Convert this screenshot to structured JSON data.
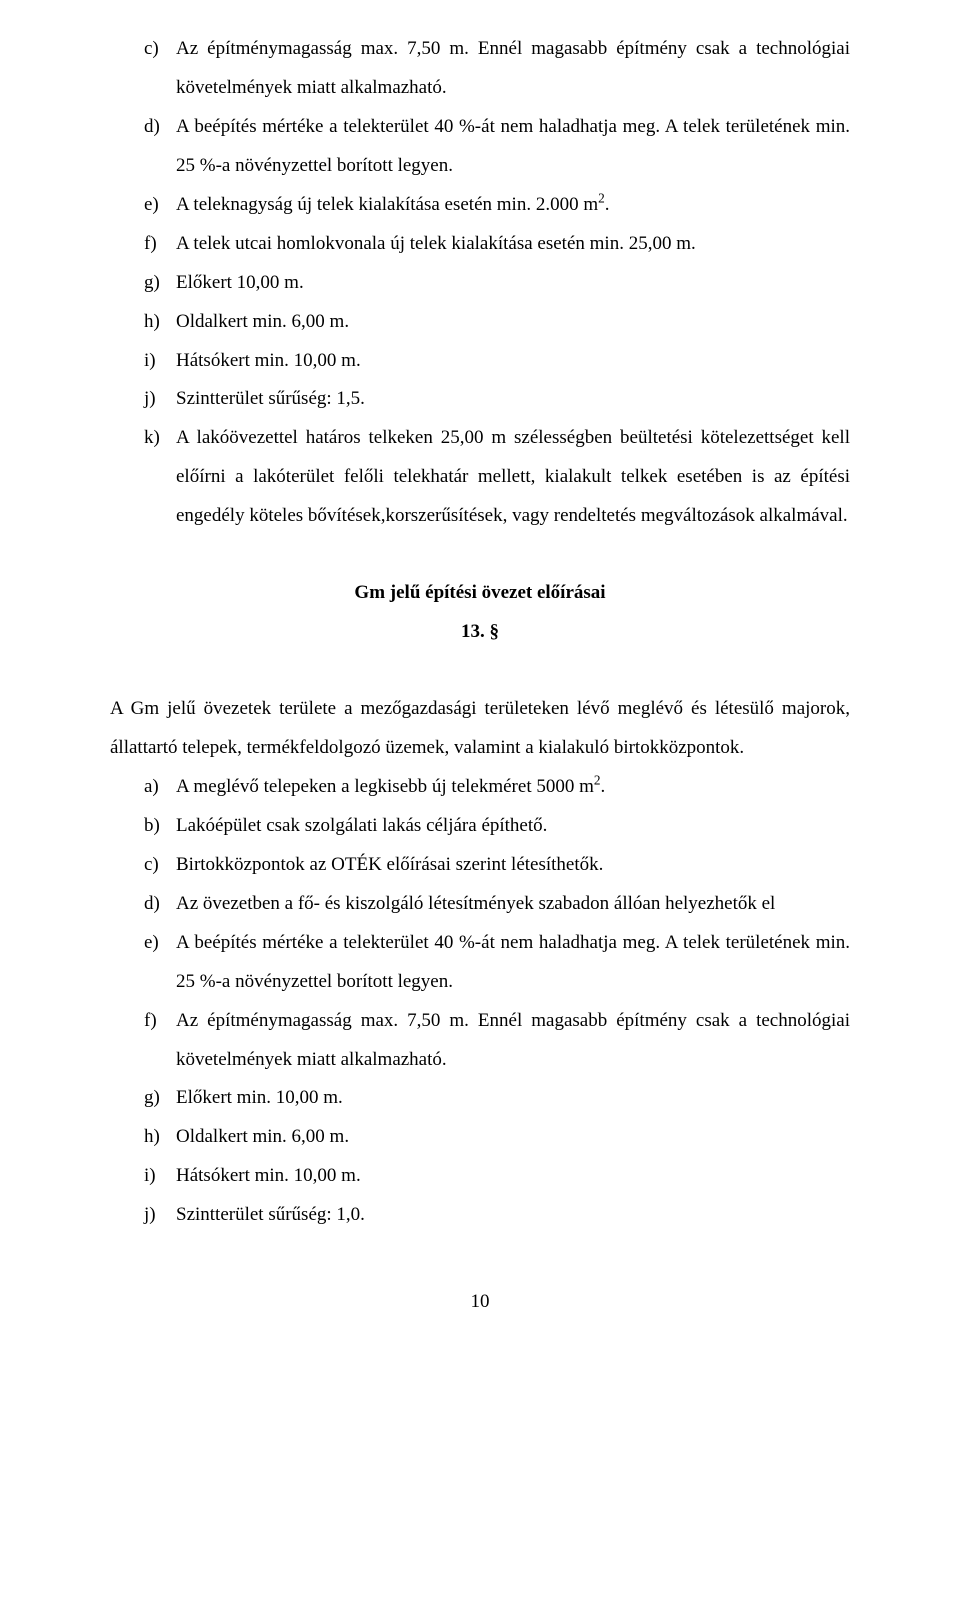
{
  "list1": {
    "c": {
      "marker": "c)",
      "text": "Az építménymagasság max. 7,50 m. Ennél magasabb építmény csak a technológiai követelmények miatt alkalmazható."
    },
    "d": {
      "marker": "d)",
      "text": "A beépítés mértéke a telekterület 40 %-át nem haladhatja meg. A telek területének min. 25 %-a növényzettel borított legyen."
    },
    "e": {
      "marker": "e)",
      "text_pre": "A teleknagyság új telek kialakítása esetén min. 2.000 m",
      "sup": "2",
      "text_post": "."
    },
    "f": {
      "marker": "f)",
      "text": "A telek utcai homlokvonala új telek kialakítása esetén min. 25,00 m."
    },
    "g": {
      "marker": "g)",
      "text": "Előkert 10,00 m."
    },
    "h": {
      "marker": "h)",
      "text": "Oldalkert min. 6,00 m."
    },
    "i": {
      "marker": "i)",
      "text": "Hátsókert min. 10,00 m."
    },
    "j": {
      "marker": "j)",
      "text": "Szintterület sűrűség: 1,5."
    },
    "k": {
      "marker": "k)",
      "text": "A lakóövezettel határos telkeken 25,00 m szélességben beültetési kötelezettséget kell előírni a lakóterület felőli telekhatár mellett, kialakult telkek esetében is az építési engedély köteles bővítések,korszerűsítések, vagy rendeltetés megváltozások alkalmával."
    }
  },
  "heading": {
    "title": "Gm jelű építési övezet előírásai",
    "section": "13. §"
  },
  "para2": "A Gm jelű övezetek területe a mezőgazdasági területeken lévő meglévő és létesülő majorok, állattartó telepek, termékfeldolgozó üzemek, valamint a kialakuló birtokközpontok.",
  "list2": {
    "a": {
      "marker": "a)",
      "text_pre": "A meglévő telepeken a legkisebb új telekméret 5000 m",
      "sup": "2",
      "text_post": "."
    },
    "b": {
      "marker": "b)",
      "text": "Lakóépület csak szolgálati lakás céljára építhető."
    },
    "c": {
      "marker": "c)",
      "text": "Birtokközpontok az OTÉK előírásai szerint létesíthetők."
    },
    "d": {
      "marker": "d)",
      "text": "Az övezetben a fő- és kiszolgáló létesítmények szabadon állóan helyezhetők el"
    },
    "e": {
      "marker": "e)",
      "text": "A beépítés mértéke a telekterület 40 %-át nem haladhatja meg. A telek területének min. 25 %-a növényzettel borított legyen."
    },
    "f": {
      "marker": "f)",
      "text": "Az építménymagasság max. 7,50 m. Ennél magasabb építmény csak a technológiai követelmények miatt alkalmazható."
    },
    "g": {
      "marker": "g)",
      "text": "Előkert min. 10,00 m."
    },
    "h": {
      "marker": "h)",
      "text": "Oldalkert min. 6,00 m."
    },
    "i": {
      "marker": "i)",
      "text": "Hátsókert min. 10,00 m."
    },
    "j": {
      "marker": "j)",
      "text": "Szintterület sűrűség: 1,0."
    }
  },
  "pageNumber": "10"
}
